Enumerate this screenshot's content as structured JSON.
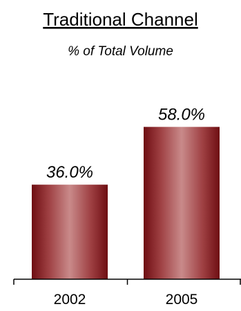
{
  "chart_data": {
    "type": "bar",
    "title": "Traditional Channel",
    "subtitle": "% of Total Volume",
    "categories": [
      "2002",
      "2005"
    ],
    "values": [
      36.0,
      58.0
    ],
    "data_labels": [
      "36.0%",
      "58.0%"
    ],
    "unit": "%",
    "ylim": [
      0,
      80
    ],
    "grid": false,
    "legend": "none",
    "colors": {
      "bar_dark": "#6e0e12",
      "bar_light": "#c98a8a",
      "axis": "#000000",
      "text": "#000000"
    }
  }
}
